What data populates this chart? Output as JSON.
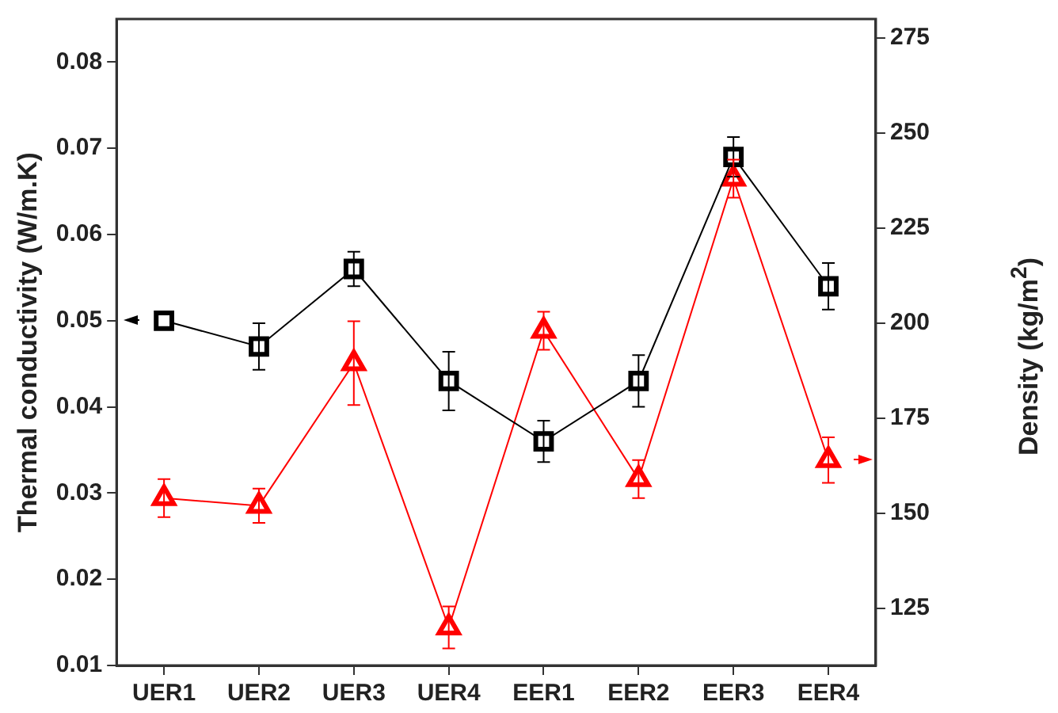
{
  "chart_data": {
    "type": "line",
    "xlabel": null,
    "ylabel": "Thermal conductivity (W/m.K)",
    "y2label": "Density (kg/m$^{2}$)",
    "categories": [
      "UER1",
      "UER2",
      "UER3",
      "UER4",
      "EER1",
      "EER2",
      "EER3",
      "EER4"
    ],
    "series": [
      {
        "color": "#000000",
        "marker": "square",
        "values": [
          0.05,
          0.047,
          0.056,
          0.043,
          0.036,
          0.043,
          0.069,
          0.054
        ],
        "errors": [
          null,
          0.0027,
          0.002,
          0.0034,
          0.0024,
          0.003,
          0.0023,
          0.0027
        ]
      },
      {
        "color": "#ff0000",
        "marker": "triangle",
        "axis": "y2",
        "values": [
          154,
          152,
          189.5,
          120,
          198,
          159,
          238,
          164
        ],
        "errors": [
          5,
          4.5,
          11,
          5.5,
          5,
          5,
          5,
          6
        ]
      }
    ],
    "ylim": [
      0.01,
      0.085
    ],
    "yticks": [
      0.01,
      0.02,
      0.03,
      0.04,
      0.05,
      0.06,
      0.07,
      0.08
    ],
    "y2lim": [
      110,
      280
    ],
    "y2ticks": [
      125,
      150,
      175,
      200,
      225,
      250,
      275
    ],
    "grid": false,
    "legend": false
  }
}
